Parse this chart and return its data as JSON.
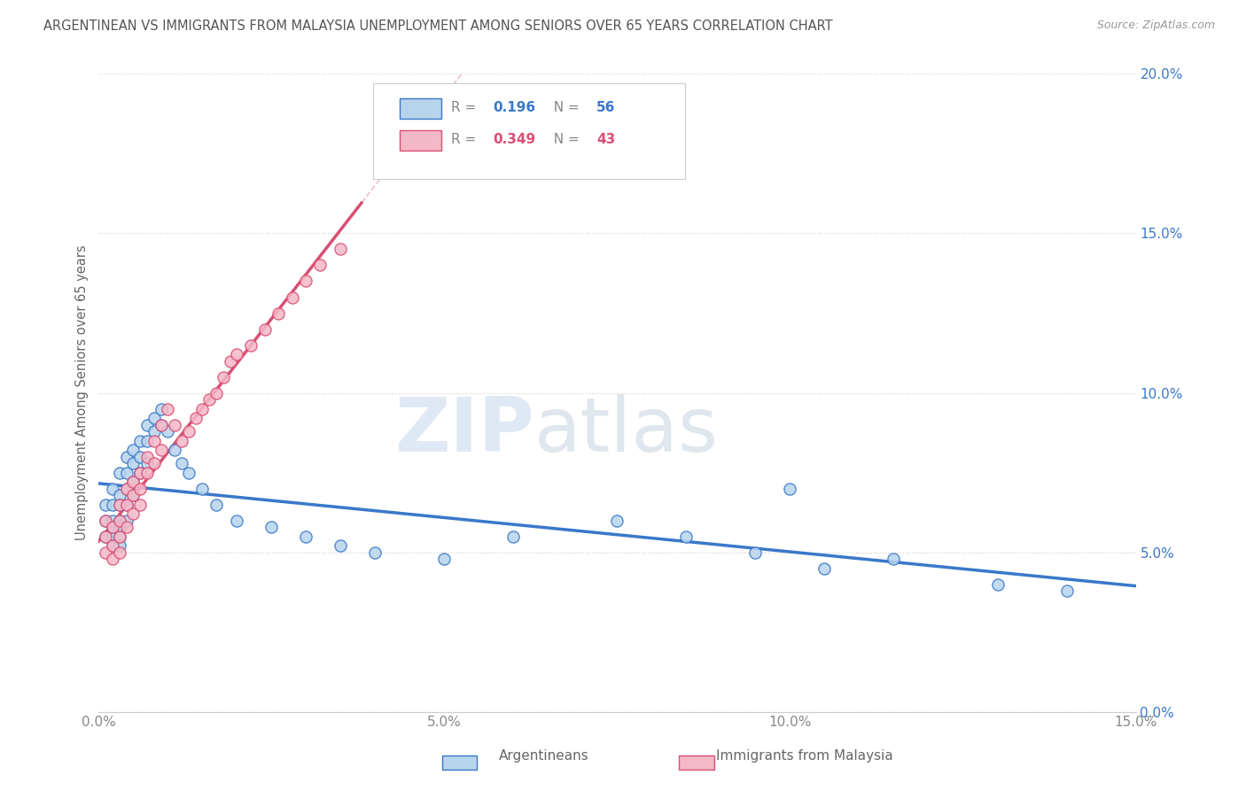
{
  "title": "ARGENTINEAN VS IMMIGRANTS FROM MALAYSIA UNEMPLOYMENT AMONG SENIORS OVER 65 YEARS CORRELATION CHART",
  "source": "Source: ZipAtlas.com",
  "ylabel": "Unemployment Among Seniors over 65 years",
  "xlabel_argentineans": "Argentineans",
  "xlabel_immigrants": "Immigrants from Malaysia",
  "xmin": 0.0,
  "xmax": 0.15,
  "ymin": 0.0,
  "ymax": 0.2,
  "r_argentinean": 0.196,
  "n_argentinean": 56,
  "r_immigrant": 0.349,
  "n_immigrant": 43,
  "color_argentinean": "#b8d4ed",
  "color_immigrant": "#f5b8c8",
  "line_color_argentinean": "#3a78c9",
  "line_color_immigrant": "#d94f72",
  "watermark_zip": "ZIP",
  "watermark_atlas": "atlas",
  "argentinean_x": [
    0.001,
    0.001,
    0.001,
    0.002,
    0.002,
    0.002,
    0.002,
    0.002,
    0.002,
    0.003,
    0.003,
    0.003,
    0.003,
    0.003,
    0.003,
    0.003,
    0.004,
    0.004,
    0.004,
    0.004,
    0.004,
    0.005,
    0.005,
    0.005,
    0.005,
    0.006,
    0.006,
    0.006,
    0.007,
    0.007,
    0.007,
    0.008,
    0.008,
    0.009,
    0.009,
    0.01,
    0.011,
    0.012,
    0.013,
    0.015,
    0.017,
    0.02,
    0.025,
    0.03,
    0.035,
    0.04,
    0.05,
    0.06,
    0.075,
    0.085,
    0.095,
    0.1,
    0.105,
    0.115,
    0.13,
    0.14
  ],
  "argentinean_y": [
    0.065,
    0.06,
    0.055,
    0.07,
    0.065,
    0.06,
    0.055,
    0.058,
    0.052,
    0.075,
    0.068,
    0.065,
    0.06,
    0.058,
    0.055,
    0.052,
    0.08,
    0.075,
    0.07,
    0.065,
    0.06,
    0.082,
    0.078,
    0.072,
    0.068,
    0.085,
    0.08,
    0.075,
    0.09,
    0.085,
    0.078,
    0.092,
    0.088,
    0.095,
    0.09,
    0.088,
    0.082,
    0.078,
    0.075,
    0.07,
    0.065,
    0.06,
    0.058,
    0.055,
    0.052,
    0.05,
    0.048,
    0.055,
    0.06,
    0.055,
    0.05,
    0.07,
    0.045,
    0.048,
    0.04,
    0.038
  ],
  "immigrant_x": [
    0.001,
    0.001,
    0.001,
    0.002,
    0.002,
    0.002,
    0.003,
    0.003,
    0.003,
    0.003,
    0.004,
    0.004,
    0.004,
    0.005,
    0.005,
    0.005,
    0.006,
    0.006,
    0.006,
    0.007,
    0.007,
    0.008,
    0.008,
    0.009,
    0.009,
    0.01,
    0.011,
    0.012,
    0.013,
    0.014,
    0.015,
    0.016,
    0.017,
    0.018,
    0.019,
    0.02,
    0.022,
    0.024,
    0.026,
    0.028,
    0.03,
    0.032,
    0.035
  ],
  "immigrant_y": [
    0.06,
    0.055,
    0.05,
    0.058,
    0.052,
    0.048,
    0.065,
    0.06,
    0.055,
    0.05,
    0.07,
    0.065,
    0.058,
    0.072,
    0.068,
    0.062,
    0.075,
    0.07,
    0.065,
    0.08,
    0.075,
    0.085,
    0.078,
    0.09,
    0.082,
    0.095,
    0.09,
    0.085,
    0.088,
    0.092,
    0.095,
    0.098,
    0.1,
    0.105,
    0.11,
    0.112,
    0.115,
    0.12,
    0.125,
    0.13,
    0.135,
    0.14,
    0.145
  ]
}
